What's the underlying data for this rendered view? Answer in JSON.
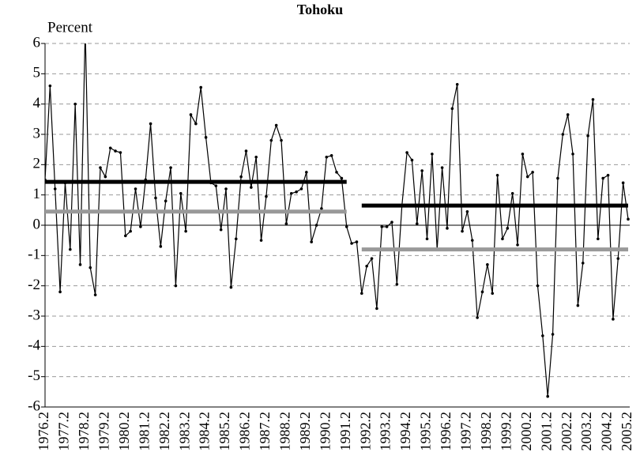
{
  "chart_data": {
    "type": "line",
    "title": "Tohoku",
    "ylabel": "Percent",
    "categories": [
      "1976.2",
      null,
      null,
      null,
      "1977.2",
      null,
      null,
      null,
      "1978.2",
      null,
      null,
      null,
      "1979.2",
      null,
      null,
      null,
      "1980.2",
      null,
      null,
      null,
      "1981.2",
      null,
      null,
      null,
      "1982.2",
      null,
      null,
      null,
      "1983.2",
      null,
      null,
      null,
      "1984.2",
      null,
      null,
      null,
      "1985.2",
      null,
      null,
      null,
      "1986.2",
      null,
      null,
      null,
      "1987.2",
      null,
      null,
      null,
      "1988.2",
      null,
      null,
      null,
      "1989.2",
      null,
      null,
      null,
      "1990.2",
      null,
      null,
      null,
      "1991.2",
      null,
      null,
      null,
      "1992.2",
      null,
      null,
      null,
      "1993.2",
      null,
      null,
      null,
      "1994.2",
      null,
      null,
      null,
      "1995.2",
      null,
      null,
      null,
      "1996.2",
      null,
      null,
      null,
      "1997.2",
      null,
      null,
      null,
      "1998.2",
      null,
      null,
      null,
      "1999.2",
      null,
      null,
      null,
      "2000.2",
      null,
      null,
      null,
      "2001.2",
      null,
      null,
      null,
      "2002.2",
      null,
      null,
      null,
      "2003.2",
      null,
      null,
      null,
      "2004.2",
      null,
      null,
      null,
      "2005.2"
    ],
    "series": [
      {
        "color": "#000000",
        "markers": true,
        "width": 1.2,
        "values": [
          1.5,
          4.6,
          1.2,
          -2.2,
          1.4,
          -0.8,
          4.0,
          -1.3,
          6.5,
          -1.4,
          -2.3,
          1.9,
          1.6,
          2.55,
          2.45,
          2.4,
          -0.35,
          -0.2,
          1.2,
          -0.05,
          1.5,
          3.35,
          0.9,
          -0.7,
          0.8,
          1.9,
          -2.0,
          1.05,
          -0.2,
          3.65,
          3.35,
          4.55,
          2.9,
          1.4,
          1.3,
          -0.15,
          1.2,
          -2.05,
          -0.45,
          1.6,
          2.45,
          1.25,
          2.25,
          -0.5,
          0.95,
          2.8,
          3.3,
          2.8,
          0.05,
          1.05,
          1.1,
          1.2,
          1.75,
          -0.55,
          0.0,
          0.55,
          2.25,
          2.3,
          1.75,
          1.55,
          -0.05,
          -0.6,
          -0.55,
          -2.25,
          -1.35,
          -1.1,
          -2.75,
          -0.05,
          -0.05,
          0.1,
          -1.95,
          0.65,
          2.4,
          2.15,
          0.05,
          1.8,
          -0.45,
          2.35,
          -0.8,
          1.9,
          -0.1,
          3.85,
          4.65,
          -0.2,
          0.45,
          -0.5,
          -3.05,
          -2.2,
          -1.3,
          -2.25,
          1.65,
          -0.45,
          -0.1,
          1.05,
          -0.65,
          2.35,
          1.6,
          1.75,
          -2.0,
          -3.65,
          -5.65,
          -3.6,
          1.55,
          3.0,
          3.65,
          2.35,
          -2.65,
          -1.25,
          2.95,
          4.15,
          -0.45,
          1.55,
          1.65,
          -3.1,
          -1.1,
          1.4,
          0.2
        ]
      },
      {
        "color": "#000000",
        "markers": false,
        "width": 5,
        "values": [
          1.43,
          1.43,
          1.43,
          1.43,
          1.43,
          1.43,
          1.43,
          1.43,
          1.43,
          1.43,
          1.43,
          1.43,
          1.43,
          1.43,
          1.43,
          1.43,
          1.43,
          1.43,
          1.43,
          1.43,
          1.43,
          1.43,
          1.43,
          1.43,
          1.43,
          1.43,
          1.43,
          1.43,
          1.43,
          1.43,
          1.43,
          1.43,
          1.43,
          1.43,
          1.43,
          1.43,
          1.43,
          1.43,
          1.43,
          1.43,
          1.43,
          1.43,
          1.43,
          1.43,
          1.43,
          1.43,
          1.43,
          1.43,
          1.43,
          1.43,
          1.43,
          1.43,
          1.43,
          1.43,
          1.43,
          1.43,
          1.43,
          1.43,
          1.43,
          1.43,
          1.43,
          null,
          null,
          0.65,
          0.65,
          0.65,
          0.65,
          0.65,
          0.65,
          0.65,
          0.65,
          0.65,
          0.65,
          0.65,
          0.65,
          0.65,
          0.65,
          0.65,
          0.65,
          0.65,
          0.65,
          0.65,
          0.65,
          0.65,
          0.65,
          0.65,
          0.65,
          0.65,
          0.65,
          0.65,
          0.65,
          0.65,
          0.65,
          0.65,
          0.65,
          0.65,
          0.65,
          0.65,
          0.65,
          0.65,
          0.65,
          0.65,
          0.65,
          0.65,
          0.65,
          0.65,
          0.65,
          0.65,
          0.65,
          0.65,
          0.65,
          0.65,
          0.65,
          0.65,
          0.65,
          0.65,
          0.65
        ]
      },
      {
        "color": "#999999",
        "markers": false,
        "width": 5,
        "values": [
          0.45,
          0.45,
          0.45,
          0.45,
          0.45,
          0.45,
          0.45,
          0.45,
          0.45,
          0.45,
          0.45,
          0.45,
          0.45,
          0.45,
          0.45,
          0.45,
          0.45,
          0.45,
          0.45,
          0.45,
          0.45,
          0.45,
          0.45,
          0.45,
          0.45,
          0.45,
          0.45,
          0.45,
          0.45,
          0.45,
          0.45,
          0.45,
          0.45,
          0.45,
          0.45,
          0.45,
          0.45,
          0.45,
          0.45,
          0.45,
          0.45,
          0.45,
          0.45,
          0.45,
          0.45,
          0.45,
          0.45,
          0.45,
          0.45,
          0.45,
          0.45,
          0.45,
          0.45,
          0.45,
          0.45,
          0.45,
          0.45,
          0.45,
          0.45,
          0.45,
          0.45,
          null,
          null,
          -0.8,
          -0.8,
          -0.8,
          -0.8,
          -0.8,
          -0.8,
          -0.8,
          -0.8,
          -0.8,
          -0.8,
          -0.8,
          -0.8,
          -0.8,
          -0.8,
          -0.8,
          -0.8,
          -0.8,
          -0.8,
          -0.8,
          -0.8,
          -0.8,
          -0.8,
          -0.8,
          -0.8,
          -0.8,
          -0.8,
          -0.8,
          -0.8,
          -0.8,
          -0.8,
          -0.8,
          -0.8,
          -0.8,
          -0.8,
          -0.8,
          -0.8,
          -0.8,
          -0.8,
          -0.8,
          -0.8,
          -0.8,
          -0.8,
          -0.8,
          -0.8,
          -0.8,
          -0.8,
          -0.8,
          -0.8,
          -0.8,
          -0.8,
          -0.8,
          -0.8,
          -0.8,
          -0.8
        ]
      }
    ],
    "ylim": [
      -6,
      6
    ],
    "yticks": [
      -6,
      -5,
      -4,
      -3,
      -2,
      -1,
      0,
      1,
      2,
      3,
      4,
      5,
      6
    ],
    "grid": true
  }
}
